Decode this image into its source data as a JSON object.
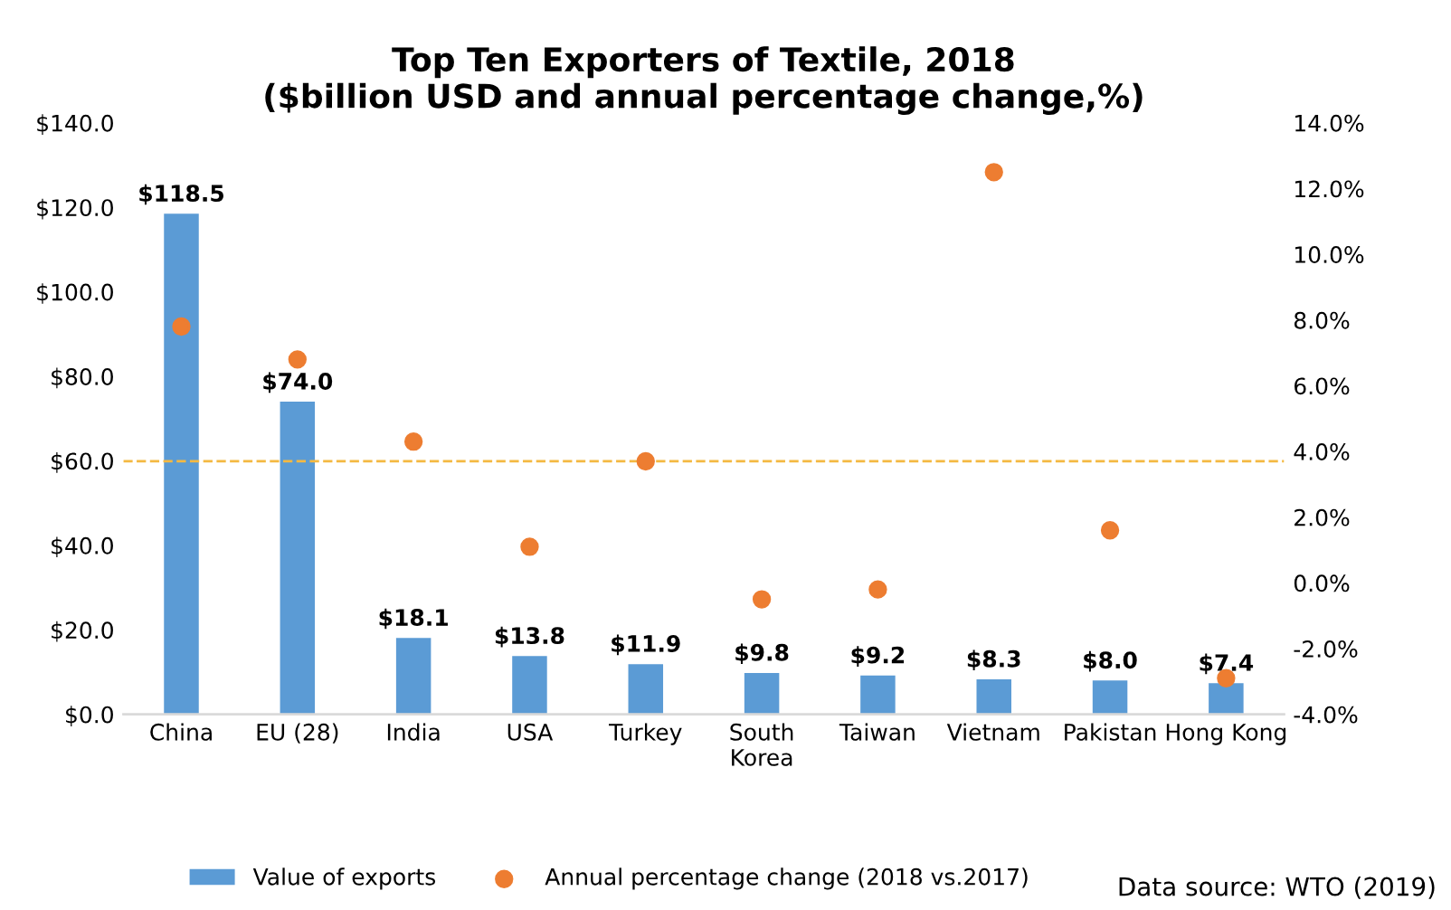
{
  "chart_data": {
    "type": "bar",
    "title": "Top Ten Exporters of Textile, 2018\n($billion USD and annual percentage change,%)",
    "categories": [
      "China",
      "EU (28)",
      "India",
      "USA",
      "Turkey",
      "South\nKorea",
      "Taiwan",
      "Vietnam",
      "Pakistan",
      "Hong Kong"
    ],
    "series": [
      {
        "name": "Value of exports",
        "color": "#5b9bd5",
        "values": [
          118.5,
          74.0,
          18.1,
          13.8,
          11.9,
          9.8,
          9.2,
          8.3,
          8.0,
          7.4
        ],
        "value_labels": [
          "$118.5",
          "$74.0",
          "$18.1",
          "$13.8",
          "$11.9",
          "$9.8",
          "$9.2",
          "$8.3",
          "$8.0",
          "$7.4"
        ]
      },
      {
        "name": "Annual percentage change (2018 vs.2017)",
        "type": "scatter",
        "axis": "y2",
        "color": "#ed7d31",
        "marker": "circle",
        "values": [
          7.8,
          6.8,
          4.3,
          1.1,
          3.7,
          -0.5,
          -0.2,
          12.5,
          1.6,
          -2.9
        ]
      }
    ],
    "ylim": [
      0,
      140
    ],
    "yticks": [
      {
        "value": 0,
        "label": "$0.0"
      },
      {
        "value": 20,
        "label": "$20.0"
      },
      {
        "value": 40,
        "label": "$40.0"
      },
      {
        "value": 60,
        "label": "$60.0"
      },
      {
        "value": 80,
        "label": "$80.0"
      },
      {
        "value": 100,
        "label": "$100.0"
      },
      {
        "value": 120,
        "label": "$120.0"
      },
      {
        "value": 140,
        "label": "$140.0"
      }
    ],
    "y2lim": [
      -4,
      14
    ],
    "y2ticks": [
      {
        "value": -4,
        "label": "-4.0%"
      },
      {
        "value": -2,
        "label": "-2.0%"
      },
      {
        "value": 0,
        "label": "0.0%"
      },
      {
        "value": 2,
        "label": "2.0%"
      },
      {
        "value": 4,
        "label": "4.0%"
      },
      {
        "value": 6,
        "label": "6.0%"
      },
      {
        "value": 8,
        "label": "8.0%"
      },
      {
        "value": 10,
        "label": "10.0%"
      },
      {
        "value": 12,
        "label": "12.0%"
      },
      {
        "value": 14,
        "label": "14.0%"
      }
    ],
    "ref_lines": [
      {
        "axis": "y2",
        "value": 3.7,
        "color": "#f4b942",
        "line_style": "dashed"
      }
    ],
    "annotations": [
      "Data source: WTO (2019)"
    ],
    "grid": false,
    "legend": "bottom"
  }
}
